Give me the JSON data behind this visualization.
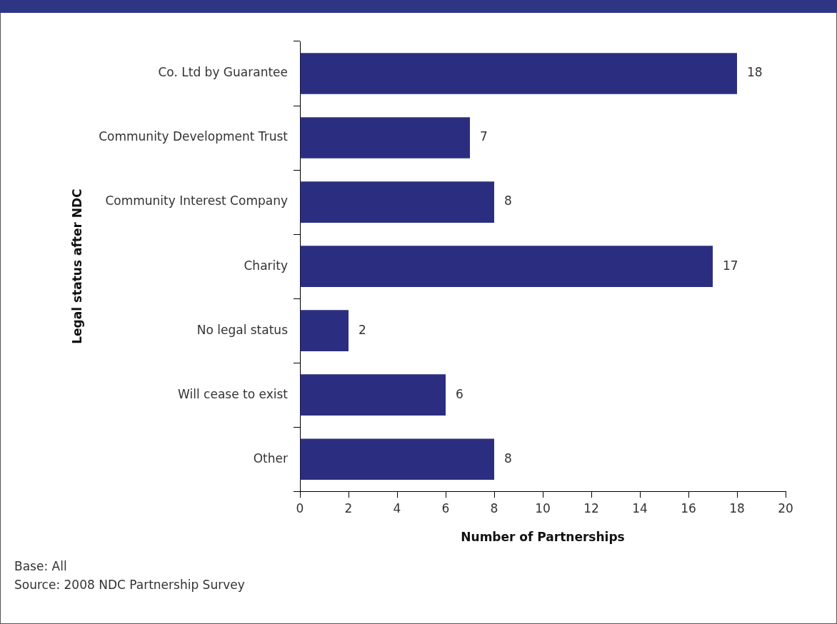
{
  "chart_data": {
    "type": "bar",
    "orientation": "horizontal",
    "categories": [
      "Co. Ltd by Guarantee",
      "Community Development Trust",
      "Community Interest Company",
      "Charity",
      "No legal status",
      "Will cease to exist",
      "Other"
    ],
    "values": [
      18,
      7,
      8,
      17,
      2,
      6,
      8
    ],
    "color": "#2b2e80",
    "xlabel": "Number of Partnerships",
    "ylabel": "Legal status after NDC",
    "xlim": [
      0,
      20
    ],
    "xticks": [
      0,
      2,
      4,
      6,
      8,
      10,
      12,
      14,
      16,
      18,
      20
    ],
    "grid": false,
    "legend": false,
    "data_labels": true,
    "annotations": [
      "Base: All",
      "Source: 2008 NDC Partnership Survey"
    ]
  }
}
